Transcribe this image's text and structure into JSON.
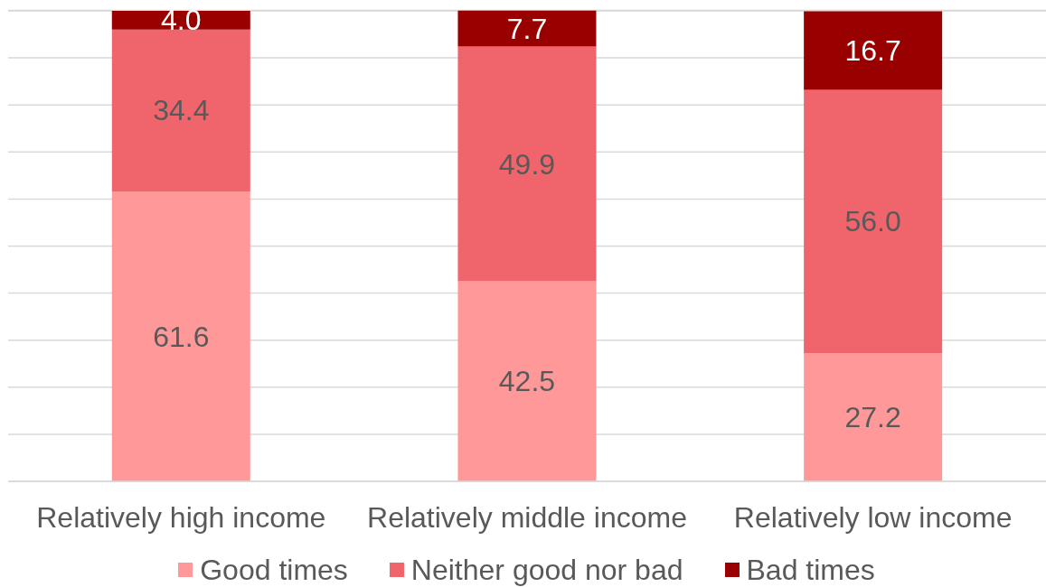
{
  "chart_data": {
    "type": "bar",
    "stacked": true,
    "categories": [
      "Relatively high income",
      "Relatively middle income",
      "Relatively low income"
    ],
    "series": [
      {
        "name": "Good times",
        "color": "#ff9999",
        "values": [
          61.6,
          42.5,
          27.2
        ],
        "value_labels": [
          "61.6",
          "42.5",
          "27.2"
        ]
      },
      {
        "name": "Neither good nor bad",
        "color": "#f0646c",
        "values": [
          34.4,
          49.9,
          56.0
        ],
        "value_labels": [
          "34.4",
          "49.9",
          "56.0"
        ]
      },
      {
        "name": "Bad times",
        "color": "#990000",
        "values": [
          4.0,
          7.7,
          16.7
        ],
        "value_labels": [
          "4.0",
          "7.7",
          "16.7"
        ]
      }
    ],
    "ylim": [
      0,
      100.1
    ],
    "yticks": [
      {
        "value": 0,
        "label": null
      },
      {
        "value": 10,
        "label": null
      },
      {
        "value": 20,
        "label": null
      },
      {
        "value": 30,
        "label": null
      },
      {
        "value": 40,
        "label": null
      },
      {
        "value": 50,
        "label": null
      },
      {
        "value": 60,
        "label": null
      },
      {
        "value": 70,
        "label": null
      },
      {
        "value": 80,
        "label": null
      },
      {
        "value": 90,
        "label": null
      },
      {
        "value": 100,
        "label": null
      }
    ],
    "grid": "y",
    "legend": "bottom",
    "tick_labels": "x"
  }
}
